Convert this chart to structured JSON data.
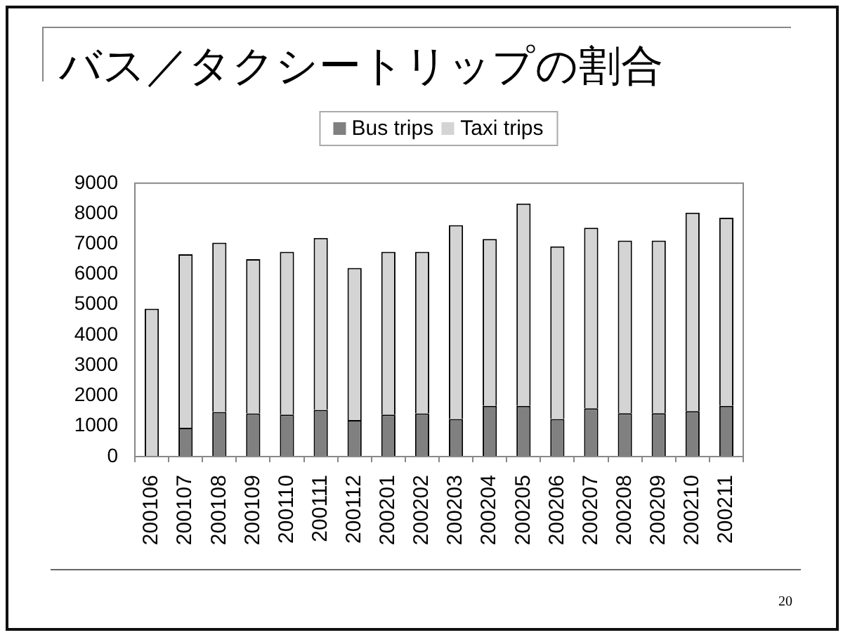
{
  "chart_data": {
    "type": "bar",
    "title": "バス／タクシートリップの割合",
    "categories": [
      "200106",
      "200107",
      "200108",
      "200109",
      "200110",
      "200111",
      "200112",
      "200201",
      "200202",
      "200203",
      "200204",
      "200205",
      "200206",
      "200207",
      "200208",
      "200209",
      "200210",
      "200211"
    ],
    "series": [
      {
        "name": "Bus trips",
        "color": "#808080",
        "values": [
          0,
          950,
          1470,
          1420,
          1380,
          1540,
          1200,
          1380,
          1420,
          1240,
          1670,
          1670,
          1240,
          1590,
          1430,
          1430,
          1500,
          1670
        ]
      },
      {
        "name": "Taxi trips",
        "color": "#d4d4d4",
        "values": [
          4870,
          5710,
          5570,
          5080,
          5360,
          5660,
          5010,
          5360,
          5320,
          6380,
          5490,
          6660,
          5680,
          5940,
          5680,
          5680,
          6530,
          6190
        ]
      }
    ],
    "stacked": true,
    "ylim": [
      0,
      9000
    ],
    "yticks": [
      0,
      1000,
      2000,
      3000,
      4000,
      5000,
      6000,
      7000,
      8000,
      9000
    ],
    "grid": false,
    "legend": "top",
    "annotations": [
      "20"
    ]
  }
}
